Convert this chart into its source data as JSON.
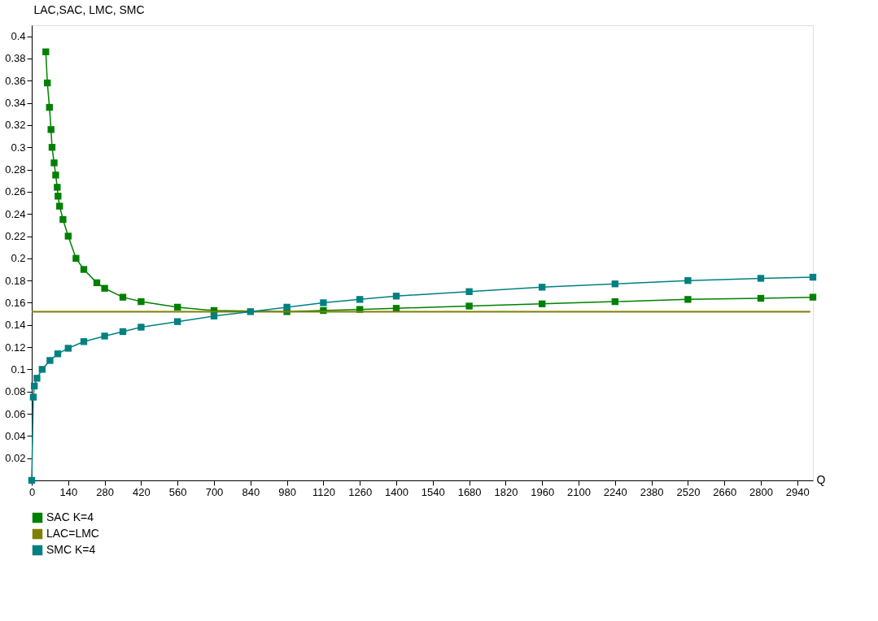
{
  "chart_data": {
    "type": "line",
    "xlabel": "Q",
    "ylabel": "LAC,SAC, LMC, SMC",
    "xlim": [
      0,
      3000
    ],
    "ylim": [
      0,
      0.41
    ],
    "xticks": [
      0,
      140,
      280,
      420,
      560,
      700,
      840,
      980,
      1120,
      1260,
      1400,
      1540,
      1680,
      1820,
      1960,
      2100,
      2240,
      2380,
      2520,
      2660,
      2800,
      2940
    ],
    "yticks": [
      0.02,
      0.04,
      0.06,
      0.08,
      0.1,
      0.12,
      0.14,
      0.16,
      0.18,
      0.2,
      0.22,
      0.24,
      0.26,
      0.28,
      0.3,
      0.32,
      0.34,
      0.36,
      0.38,
      0.4
    ],
    "grid": false,
    "legend": "bottom",
    "series": [
      {
        "name": "SAC K=4",
        "color": "#008000",
        "marker": "square",
        "x": [
          54,
          60,
          68,
          74,
          78,
          86,
          92,
          98,
          101,
          107,
          120,
          140,
          170,
          200,
          250,
          280,
          350,
          420,
          560,
          700,
          980,
          1120,
          1260,
          1400,
          1680,
          1960,
          2240,
          2520,
          2800,
          3000
        ],
        "values": [
          0.386,
          0.358,
          0.336,
          0.316,
          0.3,
          0.286,
          0.275,
          0.264,
          0.256,
          0.247,
          0.235,
          0.22,
          0.2,
          0.19,
          0.178,
          0.173,
          0.165,
          0.161,
          0.156,
          0.153,
          0.152,
          0.153,
          0.154,
          0.155,
          0.157,
          0.159,
          0.161,
          0.163,
          0.164,
          0.165
        ]
      },
      {
        "name": "LAC=LMC",
        "color": "#808000",
        "marker": "none",
        "x": [
          0,
          2990
        ],
        "values": [
          0.152,
          0.152
        ]
      },
      {
        "name": "SMC K=4",
        "color": "#008080",
        "marker": "square",
        "x": [
          0,
          6,
          10,
          20,
          40,
          70,
          100,
          140,
          200,
          280,
          350,
          420,
          560,
          700,
          840,
          980,
          1120,
          1260,
          1400,
          1680,
          1960,
          2240,
          2520,
          2800,
          3000
        ],
        "values": [
          0,
          0.075,
          0.085,
          0.092,
          0.1,
          0.108,
          0.114,
          0.119,
          0.125,
          0.13,
          0.134,
          0.138,
          0.143,
          0.148,
          0.152,
          0.156,
          0.16,
          0.163,
          0.166,
          0.17,
          0.174,
          0.177,
          0.18,
          0.182,
          0.183
        ]
      }
    ]
  }
}
